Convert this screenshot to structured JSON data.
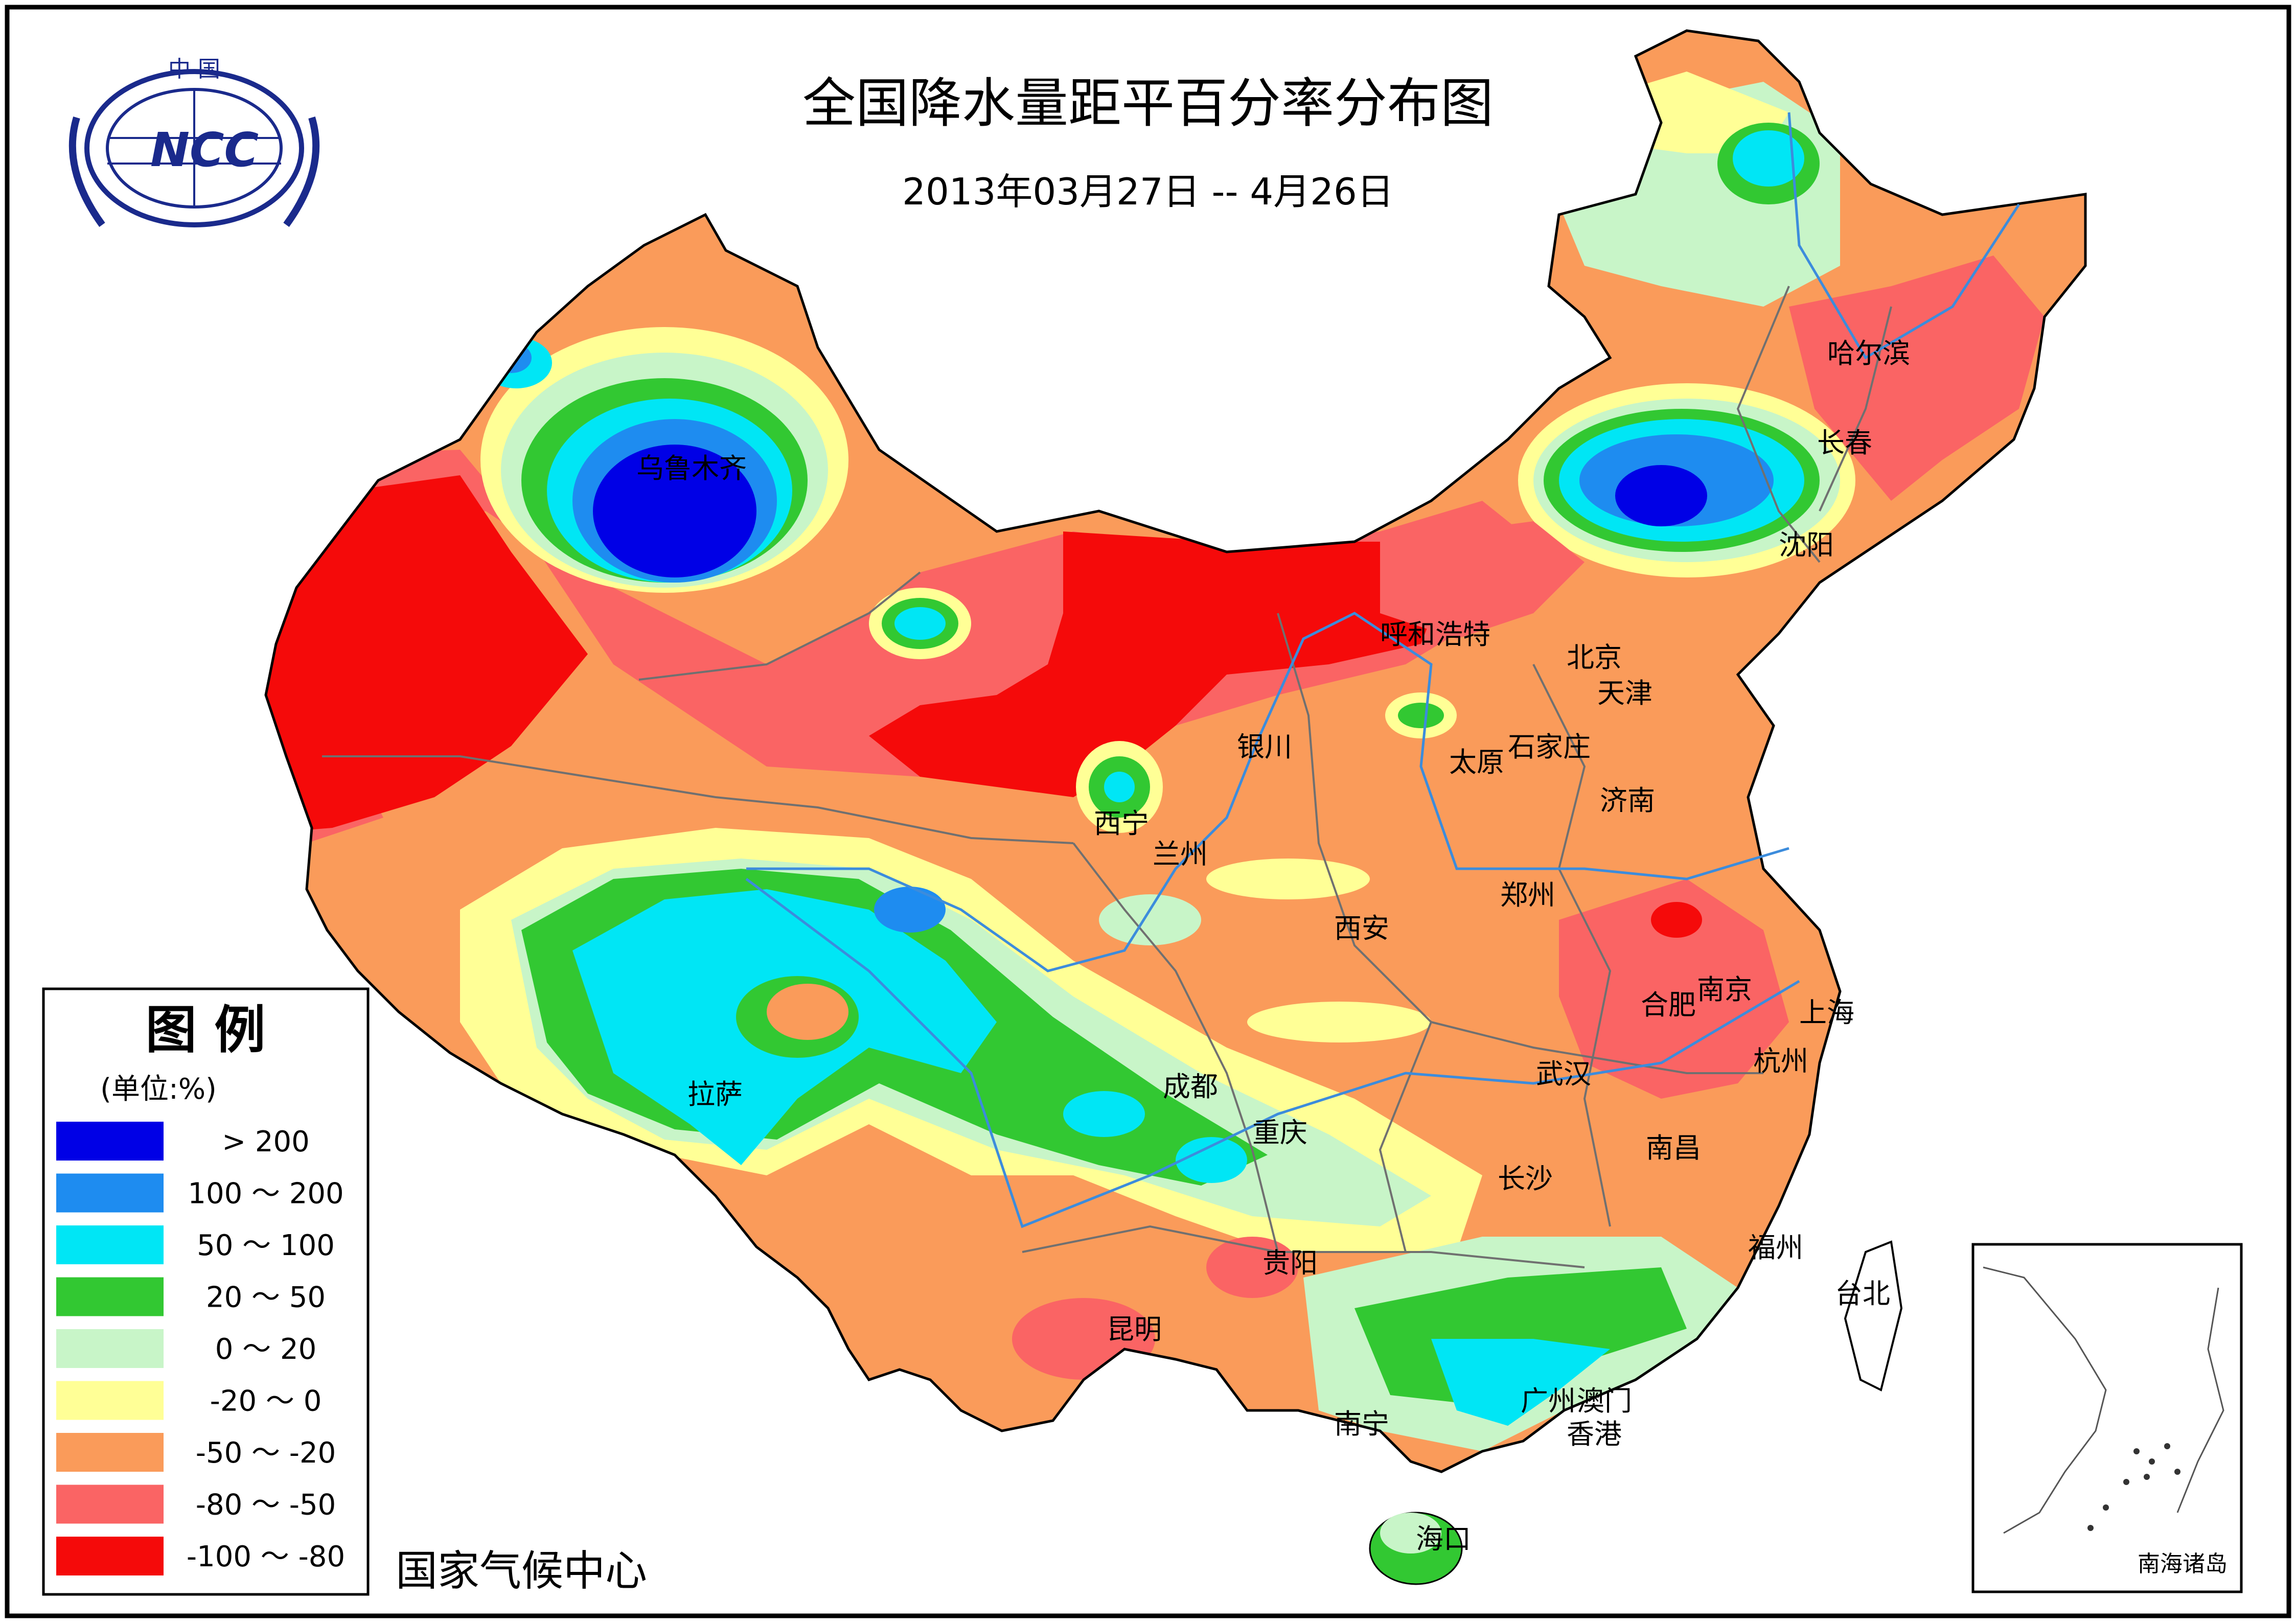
{
  "title": "全国降水量距平百分率分布图",
  "date_range": "2013年03月27日 -- 4月26日",
  "logo": {
    "text_top": "中 国",
    "text_mid": "NCC"
  },
  "publisher": "国家气候中心",
  "inset_label": "南海诸岛",
  "legend": {
    "title": "图 例",
    "unit": "(单位:%)",
    "items": [
      {
        "label": "> 200",
        "color": "#0000e6"
      },
      {
        "label": "100 ～ 200",
        "color": "#1e8cf0"
      },
      {
        "label": "50 ～ 100",
        "color": "#00e6f5"
      },
      {
        "label": "20 ～ 50",
        "color": "#32c832"
      },
      {
        "label": "0 ～ 20",
        "color": "#c8f5c8"
      },
      {
        "label": "-20 ～ 0",
        "color": "#ffff96"
      },
      {
        "label": "-50 ～ -20",
        "color": "#fa9b5a"
      },
      {
        "label": "-80 ～ -50",
        "color": "#fa6464"
      },
      {
        "label": "-100 ～ -80",
        "color": "#f50a0a"
      }
    ]
  },
  "cities": [
    {
      "name": "乌鲁木齐"
    },
    {
      "name": "哈尔滨"
    },
    {
      "name": "长春"
    },
    {
      "name": "沈阳"
    },
    {
      "name": "呼和浩特"
    },
    {
      "name": "北京"
    },
    {
      "name": "天津"
    },
    {
      "name": "银川"
    },
    {
      "name": "太原"
    },
    {
      "name": "石家庄"
    },
    {
      "name": "济南"
    },
    {
      "name": "西宁"
    },
    {
      "name": "兰州"
    },
    {
      "name": "郑州"
    },
    {
      "name": "西安"
    },
    {
      "name": "合肥"
    },
    {
      "name": "南京"
    },
    {
      "name": "上海"
    },
    {
      "name": "杭州"
    },
    {
      "name": "武汉"
    },
    {
      "name": "成都"
    },
    {
      "name": "拉萨"
    },
    {
      "name": "重庆"
    },
    {
      "name": "南昌"
    },
    {
      "name": "长沙"
    },
    {
      "name": "福州"
    },
    {
      "name": "贵阳"
    },
    {
      "name": "台北"
    },
    {
      "name": "昆明"
    },
    {
      "name": "广州"
    },
    {
      "name": "澳门"
    },
    {
      "name": "香港"
    },
    {
      "name": "南宁"
    },
    {
      "name": "海口"
    }
  ]
}
